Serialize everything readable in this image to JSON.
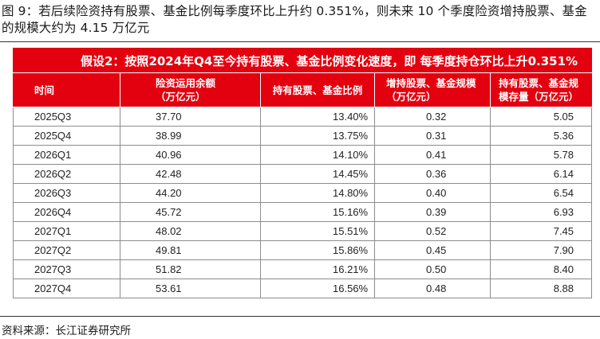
{
  "caption": "图 9：若后续险资持有股票、基金比例每季度环比上升约 0.351%，则未来 10 个季度险资增持股票、基金的规模大约为 4.15 万亿元",
  "table": {
    "banner": "假设2：按照2024年Q4至今持有股票、基金比例变化速度，即 每季度持仓环比上升0.351%",
    "headers": [
      "时间",
      "险资运用余额（万亿元）",
      "持有股票、基金比例",
      "增持股票、基金规模（万亿元）",
      "持有股票、基金规模存量（万亿元）"
    ],
    "rows": [
      [
        "2025Q3",
        "37.70",
        "13.40%",
        "0.32",
        "5.05"
      ],
      [
        "2025Q4",
        "38.99",
        "13.75%",
        "0.31",
        "5.36"
      ],
      [
        "2026Q1",
        "40.96",
        "14.10%",
        "0.41",
        "5.78"
      ],
      [
        "2026Q2",
        "42.48",
        "14.45%",
        "0.36",
        "6.14"
      ],
      [
        "2026Q3",
        "44.20",
        "14.80%",
        "0.40",
        "6.54"
      ],
      [
        "2026Q4",
        "45.72",
        "15.16%",
        "0.39",
        "6.93"
      ],
      [
        "2027Q1",
        "48.02",
        "15.51%",
        "0.52",
        "7.45"
      ],
      [
        "2027Q2",
        "49.81",
        "15.86%",
        "0.45",
        "7.90"
      ],
      [
        "2027Q3",
        "51.82",
        "16.21%",
        "0.50",
        "8.40"
      ],
      [
        "2027Q4",
        "53.61",
        "16.56%",
        "0.48",
        "8.88"
      ]
    ]
  },
  "source": "资料来源：长江证券研究所",
  "colors": {
    "header_red": "#e3000f",
    "header_text": "#ffffff"
  }
}
